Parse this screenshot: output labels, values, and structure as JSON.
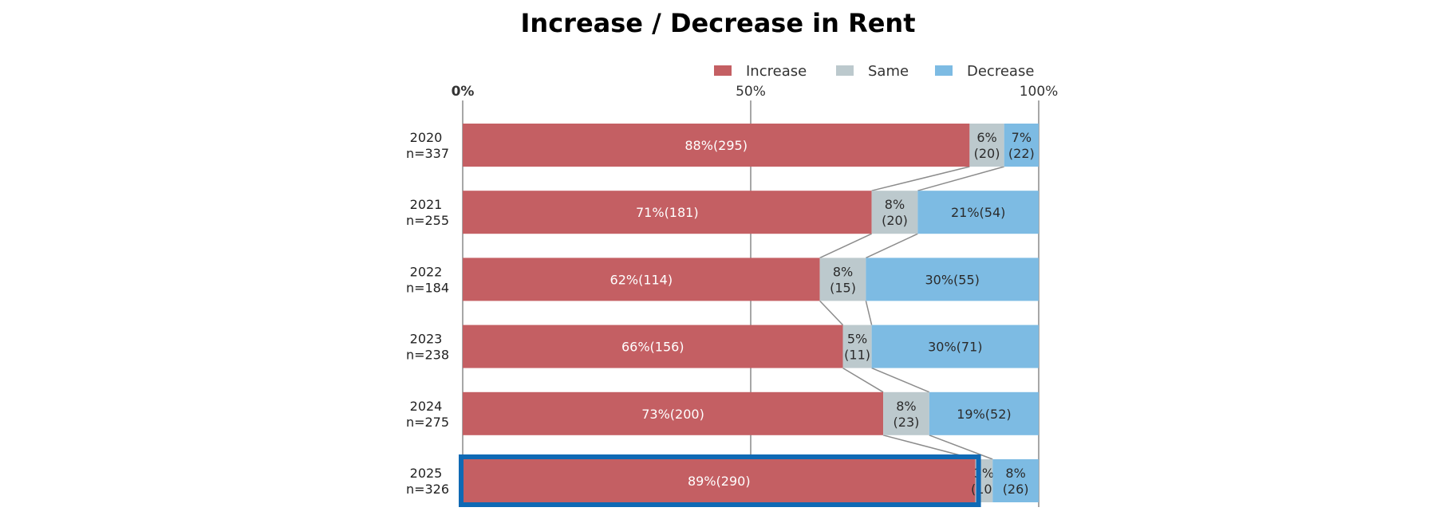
{
  "chart_data": {
    "type": "bar",
    "orientation": "horizontal",
    "stacked": true,
    "title": "Increase / Decrease in Rent",
    "categories": [
      "2020",
      "2021",
      "2022",
      "2023",
      "2024",
      "2025"
    ],
    "sample_sizes": [
      "n=337",
      "n=255",
      "n=184",
      "n=238",
      "n=275",
      "n=326"
    ],
    "series": [
      {
        "name": "Increase",
        "color": "#c45f63",
        "values": [
          88,
          71,
          62,
          66,
          73,
          89
        ],
        "labels": [
          "88%(295)",
          "71%(181)",
          "62%(114)",
          "66%(156)",
          "73%(200)",
          "89%(290)"
        ]
      },
      {
        "name": "Same",
        "color": "#bcc9cd",
        "values": [
          6,
          8,
          8,
          5,
          8,
          3
        ],
        "labels": [
          [
            "6%",
            "(20)"
          ],
          [
            "8%",
            "(20)"
          ],
          [
            "8%",
            "(15)"
          ],
          [
            "5%",
            "(11)"
          ],
          [
            "8%",
            "(23)"
          ],
          [
            "3%",
            "(10)"
          ]
        ]
      },
      {
        "name": "Decrease",
        "color": "#7dbbe3",
        "values": [
          7,
          21,
          30,
          30,
          19,
          8
        ],
        "labels": [
          [
            "7%",
            "(22)"
          ],
          "21%(54)",
          "30%(55)",
          "30%(71)",
          "19%(52)",
          [
            "8%",
            "(26)"
          ]
        ]
      }
    ],
    "xlim": [
      0,
      100
    ],
    "x_ticks": [
      "0%",
      "50%",
      "100%"
    ],
    "legend_position": "top-right",
    "highlighted_category": "2025",
    "highlight_color": "#0f69b4",
    "grid": "vertical lines at 0%, 50%, 100%"
  }
}
